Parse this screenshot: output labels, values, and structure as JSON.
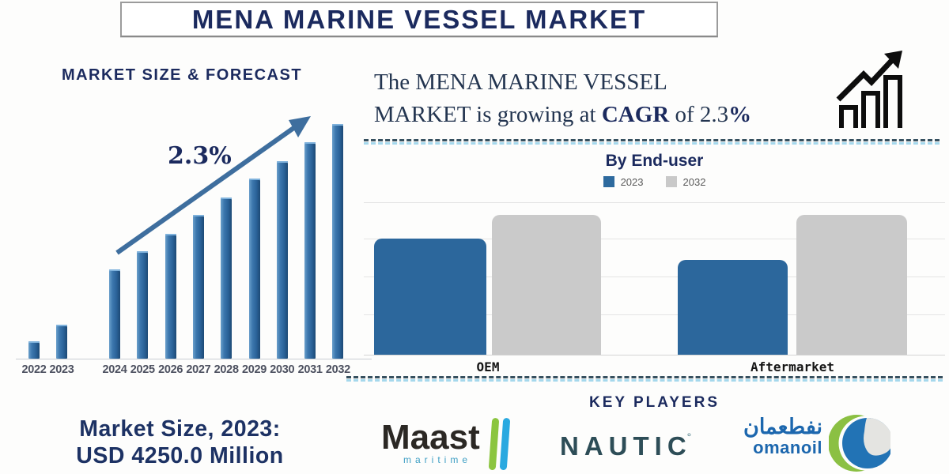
{
  "title": "MENA MARINE VESSEL MARKET",
  "left_section": {
    "chart_title": "MARKET SIZE & FORECAST",
    "cagr_annotation": "2.3%",
    "market_size_line1": "Market Size, 2023:",
    "market_size_line2": "USD 4250.0 Million"
  },
  "right_section": {
    "headline": {
      "line1": "The MENA MARINE VESSEL",
      "line2_parts": [
        "MARKET is growing at ",
        "CAGR",
        " of 2.3",
        "%"
      ]
    },
    "end_user": {
      "title": "By End-user",
      "legend": [
        {
          "label": "2023",
          "color": "#2e6a9e"
        },
        {
          "label": "2032",
          "color": "#c9c9c9"
        }
      ]
    },
    "key_players_title": "KEY PLAYERS",
    "players": [
      {
        "name": "Maast",
        "subtitle": "maritime"
      },
      {
        "name": "NAUTIC",
        "superscript": "°"
      },
      {
        "name_arabic": "نفطعمان",
        "name": "omanoil"
      }
    ]
  },
  "colors": {
    "navy": "#1b2a5e",
    "forecast_bar_blue": "#2e6ba3",
    "end_user_blue": "#2c679c",
    "end_user_gray": "#cacaca",
    "arrow_blue": "#3e6e9e",
    "legend_text": "#595959",
    "maast_green": "#8bc53f",
    "maast_blue": "#2aa9e0",
    "nautic_slate": "#2d4d57",
    "omanoil_blue": "#1c67ae"
  },
  "chart_data": [
    {
      "type": "bar",
      "title": "MARKET SIZE & FORECAST",
      "categories": [
        "2022",
        "2023",
        "2024",
        "2025",
        "2026",
        "2027",
        "2028",
        "2029",
        "2030",
        "2031",
        "2032"
      ],
      "values_relative": [
        22,
        43,
        113,
        136,
        158,
        182,
        204,
        228,
        250,
        274,
        297
      ],
      "values_note": "No numeric y-axis shown in figure; values are bar heights in px estimated from the image (baseline 0).",
      "annotation": "2.3% CAGR growth arrow drawn over bars",
      "xlabel": "",
      "ylabel": "",
      "grid": false,
      "bar_color": "#2e6ba3"
    },
    {
      "type": "bar",
      "title": "By End-user",
      "categories": [
        "OEM",
        "Aftermarket"
      ],
      "series": [
        {
          "name": "2023",
          "values_relative": [
            147,
            120
          ],
          "color": "#2c679c"
        },
        {
          "name": "2032",
          "values_relative": [
            177,
            177
          ],
          "color": "#cacaca"
        }
      ],
      "values_note": "No numeric y-axis shown; values are bar heights in px estimated from the image (plot height 200 px).",
      "legend_position": "top",
      "grid": true
    }
  ]
}
